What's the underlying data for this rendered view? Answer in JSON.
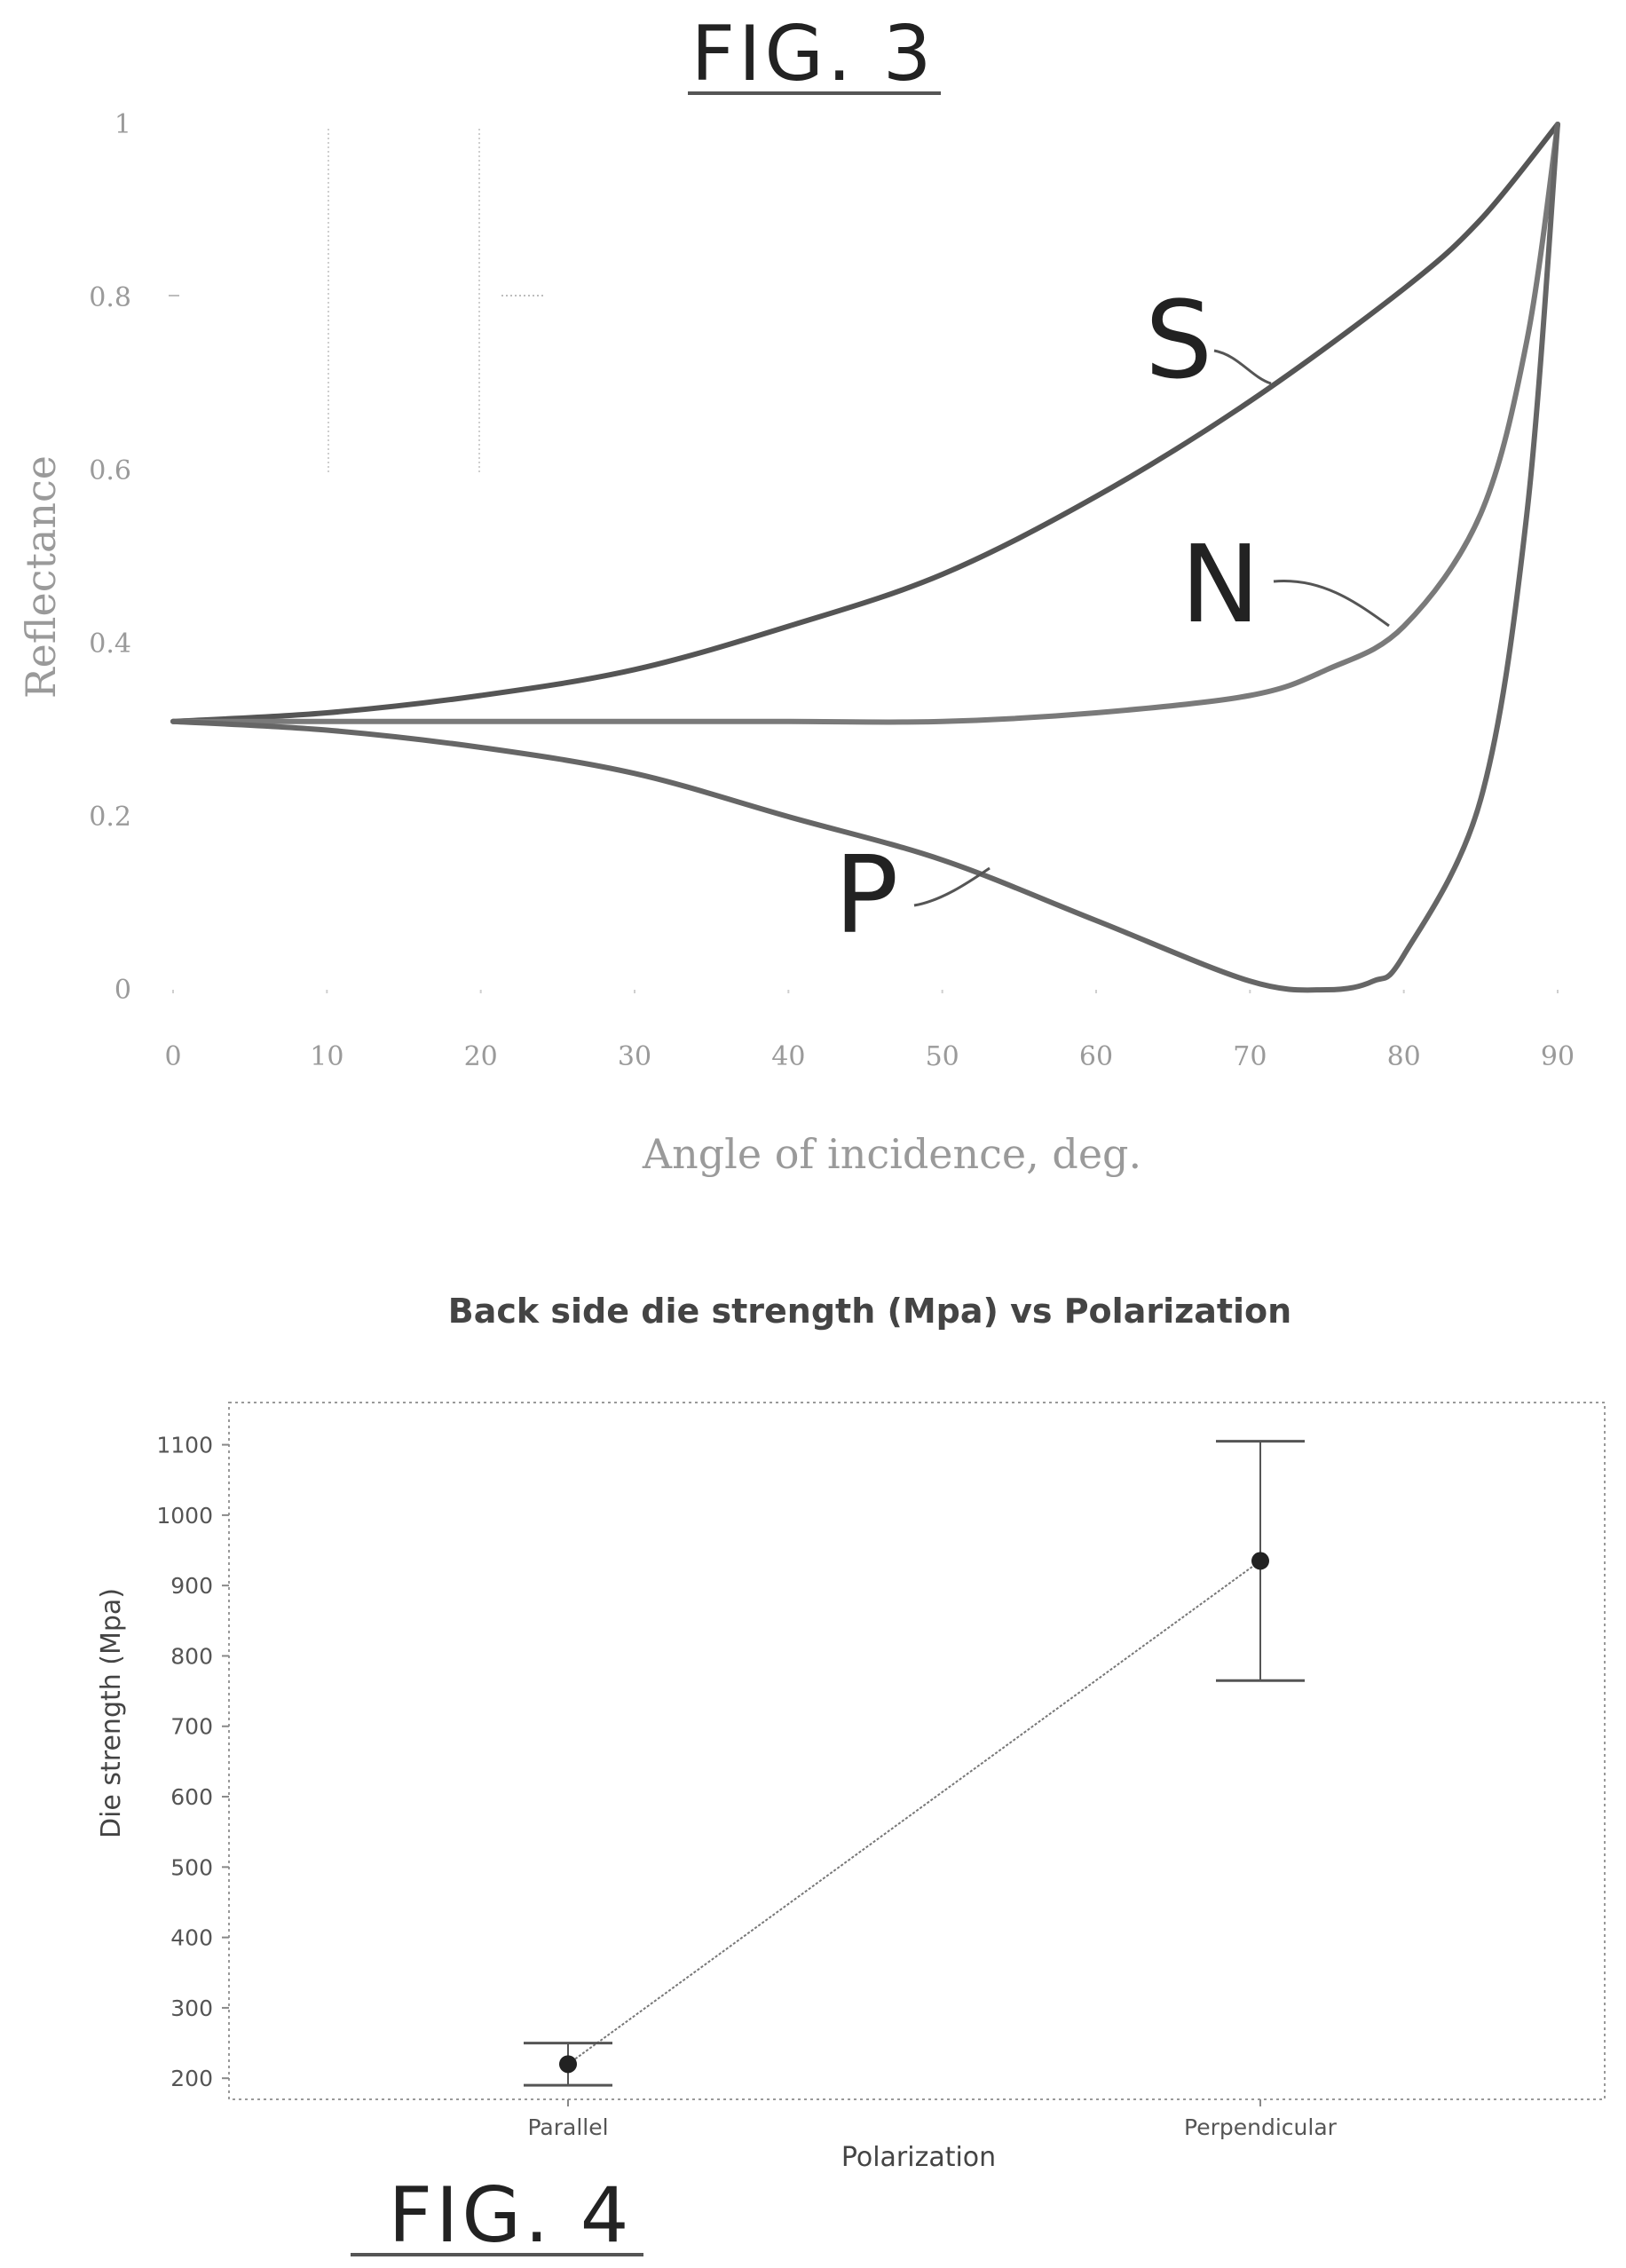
{
  "fig3": {
    "caption": "FIG. 3",
    "chart_data": {
      "type": "line",
      "xlabel": "Angle of incidence, deg.",
      "ylabel": "Reflectance",
      "xlim": [
        0,
        90
      ],
      "ylim": [
        0,
        1
      ],
      "x_ticks": [
        "0",
        "10",
        "20",
        "30",
        "40",
        "50",
        "60",
        "70",
        "80",
        "90"
      ],
      "y_ticks": [
        "0",
        "0.2",
        "0.4",
        "0.6",
        "0.8",
        "1"
      ],
      "series": [
        {
          "name": "S",
          "color": "#555555",
          "x": [
            0,
            10,
            20,
            30,
            40,
            50,
            60,
            70,
            80,
            85,
            90
          ],
          "y": [
            0.31,
            0.32,
            0.34,
            0.37,
            0.42,
            0.48,
            0.57,
            0.68,
            0.81,
            0.89,
            1.0
          ]
        },
        {
          "name": "N",
          "color": "#7a7a7a",
          "x": [
            0,
            10,
            20,
            30,
            40,
            50,
            60,
            70,
            75,
            80,
            85,
            88,
            90
          ],
          "y": [
            0.31,
            0.31,
            0.31,
            0.31,
            0.31,
            0.31,
            0.32,
            0.34,
            0.37,
            0.42,
            0.55,
            0.75,
            1.0
          ]
        },
        {
          "name": "P",
          "color": "#666666",
          "x": [
            0,
            10,
            20,
            30,
            40,
            50,
            60,
            70,
            75,
            78,
            80,
            85,
            88,
            90
          ],
          "y": [
            0.31,
            0.3,
            0.28,
            0.25,
            0.2,
            0.15,
            0.08,
            0.01,
            0.0,
            0.01,
            0.04,
            0.22,
            0.55,
            1.0
          ]
        }
      ]
    }
  },
  "fig4": {
    "caption": "FIG. 4",
    "chart_data": {
      "type": "line",
      "title": "Back side die strength (Mpa) vs Polarization",
      "xlabel": "Polarization",
      "ylabel": "Die strength (Mpa)",
      "categories": [
        "Parallel",
        "Perpendicular"
      ],
      "ylim": [
        170,
        1160
      ],
      "y_ticks": [
        "200",
        "300",
        "400",
        "500",
        "600",
        "700",
        "800",
        "900",
        "1000",
        "1100"
      ],
      "mean": [
        220,
        935
      ],
      "error_low": [
        190,
        765
      ],
      "error_high": [
        250,
        1105
      ]
    }
  }
}
